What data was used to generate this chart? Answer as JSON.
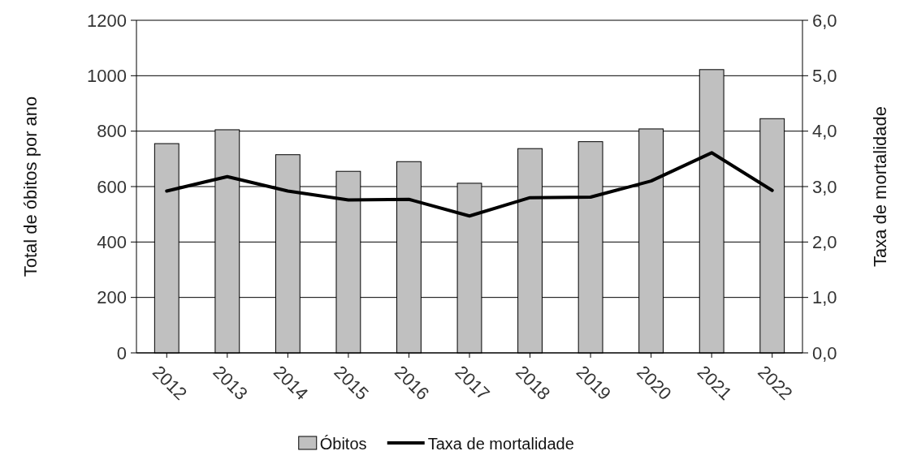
{
  "chart_data": {
    "type": "bar",
    "ylabel": "Total de óbitos por ano",
    "y2label": "Taxa de mortalidade",
    "categories": [
      "2012",
      "2013",
      "2014",
      "2015",
      "2016",
      "2017",
      "2018",
      "2019",
      "2020",
      "2021",
      "2022"
    ],
    "series": [
      {
        "name": "Óbitos",
        "color": "#c0c0c0",
        "values": [
          755,
          805,
          715,
          655,
          690,
          612,
          737,
          762,
          808,
          1022,
          845
        ]
      },
      {
        "name": "Taxa de mortalidade",
        "type": "line",
        "axis": "y2",
        "color": "#000000",
        "values": [
          2.92,
          3.18,
          2.92,
          2.76,
          2.77,
          2.47,
          2.8,
          2.81,
          3.1,
          3.61,
          2.93
        ]
      }
    ],
    "ylim": [
      0,
      1200
    ],
    "yticks": [
      0,
      200,
      400,
      600,
      800,
      1000,
      1200
    ],
    "y2lim": [
      0,
      6
    ],
    "y2ticks": [
      {
        "value": 0,
        "label": "0,0"
      },
      {
        "value": 1,
        "label": "1,0"
      },
      {
        "value": 2,
        "label": "2,0"
      },
      {
        "value": 3,
        "label": "3,0"
      },
      {
        "value": 4,
        "label": "4,0"
      },
      {
        "value": 5,
        "label": "5,0"
      },
      {
        "value": 6,
        "label": "6,0"
      }
    ],
    "grid": "y",
    "legend": "bottom",
    "marker": "none",
    "line_style": "solid"
  }
}
